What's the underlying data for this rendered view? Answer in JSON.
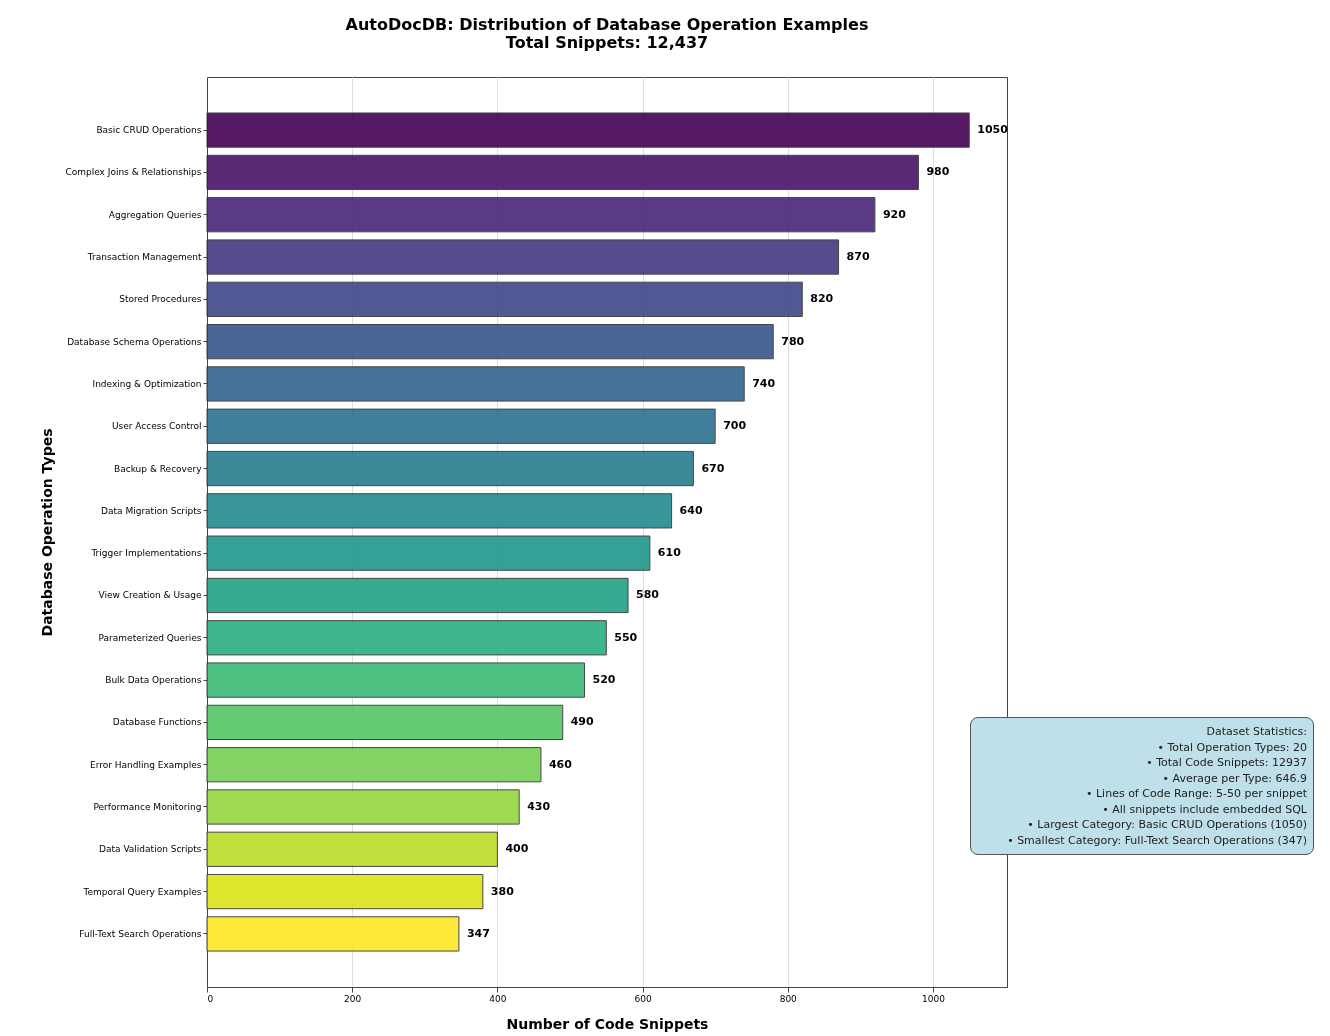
{
  "chart_data": {
    "type": "bar",
    "orientation": "horizontal",
    "title": "AutoDocDB: Distribution of Database Operation Examples",
    "subtitle": "Total Snippets: 12,437",
    "xlabel": "Number of Code Snippets",
    "ylabel": "Database Operation Types",
    "categories": [
      "Basic CRUD Operations",
      "Complex Joins & Relationships",
      "Aggregation Queries",
      "Transaction Management",
      "Stored Procedures",
      "Database Schema Operations",
      "Indexing & Optimization",
      "User Access Control",
      "Backup & Recovery",
      "Data Migration Scripts",
      "Trigger Implementations",
      "View Creation & Usage",
      "Parameterized Queries",
      "Bulk Data Operations",
      "Database Functions",
      "Error Handling Examples",
      "Performance Monitoring",
      "Data Validation Scripts",
      "Temporal Query Examples",
      "Full-Text Search Operations"
    ],
    "values": [
      1050,
      980,
      920,
      870,
      820,
      780,
      740,
      700,
      670,
      640,
      610,
      580,
      550,
      520,
      490,
      460,
      430,
      400,
      380,
      347
    ],
    "colors": [
      "#440154",
      "#481467",
      "#482576",
      "#453781",
      "#404688",
      "#39558c",
      "#33638d",
      "#2d718e",
      "#287d8e",
      "#238a8d",
      "#1f968b",
      "#20a386",
      "#29af7f",
      "#3dbc74",
      "#56c667",
      "#75d054",
      "#95d840",
      "#bade28",
      "#dde318",
      "#fde725"
    ],
    "xlim": [
      0,
      1102
    ],
    "xticks": [
      0,
      200,
      400,
      600,
      800,
      1000
    ],
    "grid": "x",
    "data_labels": true,
    "annotations": [
      "Dataset Statistics:",
      "• Total Operation Types: 20",
      "• Total Code Snippets: 12937",
      "• Average per Type: 646.9",
      "• Lines of Code Range: 5-50 per snippet",
      "• All snippets include embedded SQL",
      "• Largest Category: Basic CRUD Operations (1050)",
      "• Smallest Category: Full-Text Search Operations (347)"
    ]
  }
}
